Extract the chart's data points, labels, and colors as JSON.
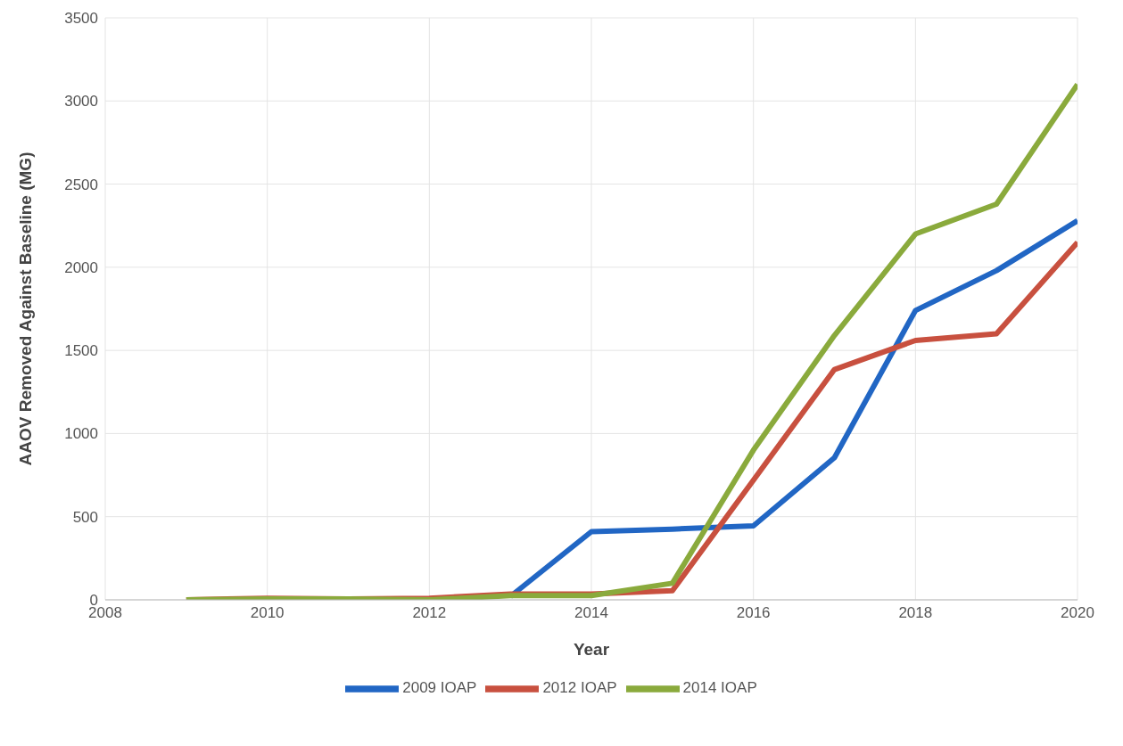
{
  "chart_data": {
    "type": "line",
    "xlabel": "Year",
    "ylabel": "AAOV Removed Against Baseline (MG)",
    "x": [
      2009,
      2010,
      2011,
      2012,
      2013,
      2014,
      2015,
      2016,
      2017,
      2018,
      2019,
      2020
    ],
    "series": [
      {
        "name": "2009 IOAP",
        "color": "#2166c4",
        "values": [
          null,
          null,
          null,
          null,
          20,
          410,
          425,
          445,
          855,
          1740,
          1980,
          2280
        ]
      },
      {
        "name": "2012 IOAP",
        "color": "#c8503f",
        "values": [
          0,
          10,
          5,
          10,
          35,
          35,
          55,
          720,
          1385,
          1560,
          1600,
          2150
        ]
      },
      {
        "name": "2014 IOAP",
        "color": "#8aaa3c",
        "values": [
          0,
          5,
          5,
          0,
          25,
          25,
          100,
          900,
          1590,
          2200,
          2380,
          3100
        ]
      }
    ],
    "xlim": [
      2008,
      2020
    ],
    "xticks": [
      2008,
      2010,
      2012,
      2014,
      2016,
      2018,
      2020
    ],
    "ylim": [
      0,
      3500
    ],
    "yticks": [
      0,
      500,
      1000,
      1500,
      2000,
      2500,
      3000,
      3500
    ],
    "grid": true,
    "legend": "bottom",
    "marker": "none",
    "line_style": "solid"
  }
}
